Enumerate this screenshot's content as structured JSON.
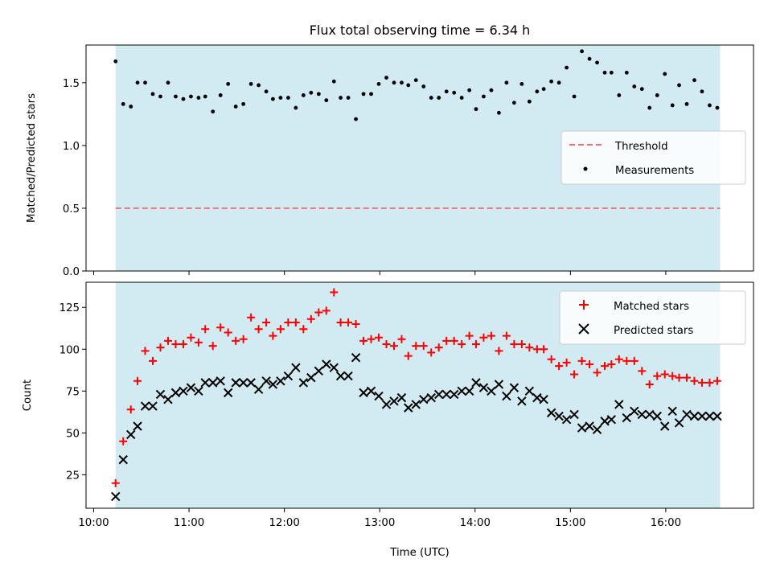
{
  "chart_data": {
    "type": "scatter",
    "title": "Flux total observing time = 6.34 h",
    "xlabel": "Time (UTC)",
    "x_ticks": [
      "10:00",
      "11:00",
      "12:00",
      "13:00",
      "14:00",
      "15:00",
      "16:00"
    ],
    "x_range_hours": [
      9.92,
      16.92
    ],
    "shaded_span_hours": [
      10.23,
      16.57
    ],
    "shade_color": "#add8e6",
    "times_hours": [
      10.23,
      10.31,
      10.39,
      10.46,
      10.54,
      10.62,
      10.7,
      10.78,
      10.86,
      10.94,
      11.02,
      11.1,
      11.17,
      11.25,
      11.33,
      11.41,
      11.49,
      11.57,
      11.65,
      11.73,
      11.81,
      11.88,
      11.96,
      12.04,
      12.12,
      12.2,
      12.28,
      12.36,
      12.44,
      12.52,
      12.59,
      12.67,
      12.75,
      12.83,
      12.91,
      12.99,
      13.07,
      13.15,
      13.23,
      13.3,
      13.38,
      13.46,
      13.54,
      13.62,
      13.7,
      13.78,
      13.86,
      13.94,
      14.01,
      14.09,
      14.17,
      14.25,
      14.33,
      14.41,
      14.49,
      14.57,
      14.65,
      14.72,
      14.8,
      14.88,
      14.96,
      15.04,
      15.12,
      15.2,
      15.28,
      15.36,
      15.43,
      15.51,
      15.59,
      15.67,
      15.75,
      15.83,
      15.91,
      15.99,
      16.07,
      16.14,
      16.22,
      16.3,
      16.38,
      16.46,
      16.54
    ],
    "panels": [
      {
        "ylabel": "Matched/Predicted stars",
        "ylim": [
          0,
          1.8
        ],
        "y_ticks": [
          0.0,
          0.5,
          1.0,
          1.5
        ],
        "y_tick_labels": [
          "0.0",
          "0.5",
          "1.0",
          "1.5"
        ],
        "legend_position": "center-right",
        "series": [
          {
            "name": "Threshold",
            "style": "dashed-line",
            "color": "#f07070",
            "value": 0.5
          },
          {
            "name": "Measurements",
            "style": "dot",
            "color": "#000000",
            "values": [
              1.67,
              1.33,
              1.31,
              1.5,
              1.5,
              1.41,
              1.39,
              1.5,
              1.39,
              1.37,
              1.39,
              1.38,
              1.39,
              1.27,
              1.4,
              1.49,
              1.31,
              1.33,
              1.49,
              1.48,
              1.43,
              1.37,
              1.38,
              1.38,
              1.3,
              1.4,
              1.42,
              1.41,
              1.36,
              1.51,
              1.38,
              1.38,
              1.21,
              1.41,
              1.41,
              1.49,
              1.54,
              1.5,
              1.5,
              1.48,
              1.52,
              1.47,
              1.38,
              1.38,
              1.43,
              1.42,
              1.38,
              1.44,
              1.29,
              1.39,
              1.44,
              1.26,
              1.5,
              1.34,
              1.49,
              1.35,
              1.43,
              1.45,
              1.51,
              1.5,
              1.62,
              1.39,
              1.75,
              1.69,
              1.66,
              1.58,
              1.58,
              1.4,
              1.58,
              1.47,
              1.45,
              1.3,
              1.4,
              1.57,
              1.32,
              1.48,
              1.33,
              1.52,
              1.43,
              1.32,
              1.3
            ]
          }
        ]
      },
      {
        "ylabel": "Count",
        "ylim": [
          5,
          140
        ],
        "y_ticks": [
          25,
          50,
          75,
          100,
          125
        ],
        "y_tick_labels": [
          "25",
          "50",
          "75",
          "100",
          "125"
        ],
        "legend_position": "top-right",
        "series": [
          {
            "name": "Matched stars",
            "marker": "+",
            "color": "#ff0000",
            "values": [
              20,
              45,
              64,
              81,
              99,
              93,
              101,
              105,
              103,
              103,
              107,
              104,
              112,
              102,
              113,
              110,
              105,
              106,
              119,
              112,
              116,
              108,
              112,
              116,
              116,
              112,
              118,
              122,
              123,
              134,
              116,
              116,
              115,
              105,
              106,
              107,
              103,
              102,
              106,
              96,
              102,
              102,
              98,
              101,
              105,
              105,
              103,
              108,
              103,
              107,
              108,
              99,
              108,
              103,
              103,
              101,
              100,
              100,
              94,
              90,
              92,
              85,
              93,
              91,
              86,
              90,
              91,
              94,
              93,
              93,
              87,
              79,
              84,
              85,
              84,
              83,
              83,
              81,
              80,
              80,
              81
            ]
          },
          {
            "name": "Predicted stars",
            "marker": "x",
            "color": "#000000",
            "values": [
              12,
              34,
              49,
              54,
              66,
              66,
              73,
              70,
              74,
              75,
              77,
              75,
              80,
              80,
              81,
              74,
              80,
              80,
              80,
              76,
              81,
              79,
              81,
              84,
              89,
              80,
              83,
              87,
              91,
              89,
              84,
              84,
              95,
              74,
              75,
              72,
              67,
              69,
              71,
              65,
              67,
              70,
              71,
              73,
              73,
              73,
              75,
              75,
              80,
              77,
              75,
              79,
              72,
              77,
              69,
              75,
              71,
              70,
              62,
              60,
              58,
              61,
              53,
              54,
              52,
              57,
              58,
              67,
              59,
              63,
              61,
              61,
              60,
              54,
              63,
              56,
              61,
              60,
              60,
              60,
              60
            ]
          }
        ]
      }
    ]
  }
}
